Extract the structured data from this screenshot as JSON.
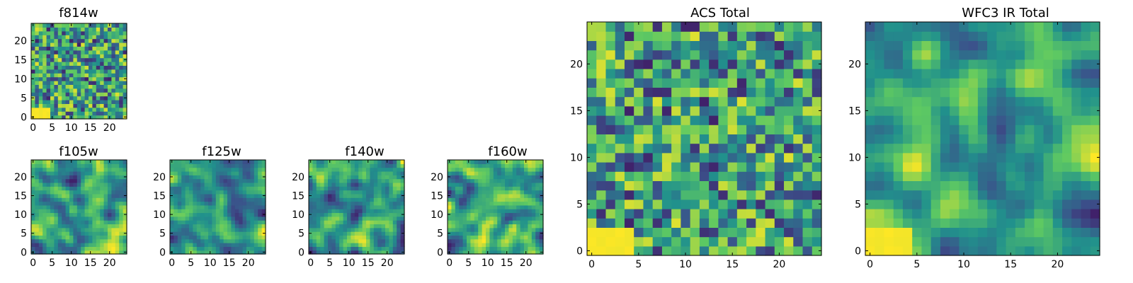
{
  "figure": {
    "seed": 1729,
    "colormap": [
      "#440154",
      "#3b528b",
      "#21918c",
      "#5ec962",
      "#fde725"
    ]
  },
  "chart_data": [
    {
      "id": "f814w",
      "type": "heatmap",
      "title": "f814w",
      "grid": [
        25,
        25
      ],
      "xticks": [
        0,
        5,
        10,
        15,
        20
      ],
      "yticks": [
        0,
        5,
        10,
        15,
        20
      ],
      "xlim": [
        -0.5,
        24.5
      ],
      "ylim": [
        -0.5,
        24.5
      ],
      "texture": "noisy",
      "bright_region": {
        "x": [
          0,
          4
        ],
        "y": [
          0,
          2
        ]
      }
    },
    {
      "id": "f105w",
      "type": "heatmap",
      "title": "f105w",
      "grid": [
        25,
        25
      ],
      "xticks": [
        0,
        5,
        10,
        15,
        20
      ],
      "yticks": [
        0,
        5,
        10,
        15,
        20
      ],
      "xlim": [
        -0.5,
        24.5
      ],
      "ylim": [
        -0.5,
        24.5
      ],
      "texture": "smooth"
    },
    {
      "id": "f125w",
      "type": "heatmap",
      "title": "f125w",
      "grid": [
        25,
        25
      ],
      "xticks": [
        0,
        5,
        10,
        15,
        20
      ],
      "yticks": [
        0,
        5,
        10,
        15,
        20
      ],
      "xlim": [
        -0.5,
        24.5
      ],
      "ylim": [
        -0.5,
        24.5
      ],
      "texture": "smooth"
    },
    {
      "id": "f140w",
      "type": "heatmap",
      "title": "f140w",
      "grid": [
        25,
        25
      ],
      "xticks": [
        0,
        5,
        10,
        15,
        20
      ],
      "yticks": [
        0,
        5,
        10,
        15,
        20
      ],
      "xlim": [
        -0.5,
        24.5
      ],
      "ylim": [
        -0.5,
        24.5
      ],
      "texture": "smooth"
    },
    {
      "id": "f160w",
      "type": "heatmap",
      "title": "f160w",
      "grid": [
        25,
        25
      ],
      "xticks": [
        0,
        5,
        10,
        15,
        20
      ],
      "yticks": [
        0,
        5,
        10,
        15,
        20
      ],
      "xlim": [
        -0.5,
        24.5
      ],
      "ylim": [
        -0.5,
        24.5
      ],
      "texture": "smooth"
    },
    {
      "id": "acs-total",
      "type": "heatmap",
      "title": "ACS Total",
      "grid": [
        25,
        25
      ],
      "xticks": [
        0,
        5,
        10,
        15,
        20
      ],
      "yticks": [
        0,
        5,
        10,
        15,
        20
      ],
      "xlim": [
        -0.5,
        24.5
      ],
      "ylim": [
        -0.5,
        24.5
      ],
      "texture": "noisy",
      "bright_region": {
        "x": [
          0,
          4
        ],
        "y": [
          0,
          2
        ]
      }
    },
    {
      "id": "wfc3-ir-total",
      "type": "heatmap",
      "title": "WFC3 IR Total",
      "grid": [
        25,
        25
      ],
      "xticks": [
        0,
        5,
        10,
        15,
        20
      ],
      "yticks": [
        0,
        5,
        10,
        15,
        20
      ],
      "xlim": [
        -0.5,
        24.5
      ],
      "ylim": [
        -0.5,
        24.5
      ],
      "texture": "smooth",
      "bright_region": {
        "x": [
          0,
          4
        ],
        "y": [
          0,
          2
        ]
      }
    }
  ]
}
